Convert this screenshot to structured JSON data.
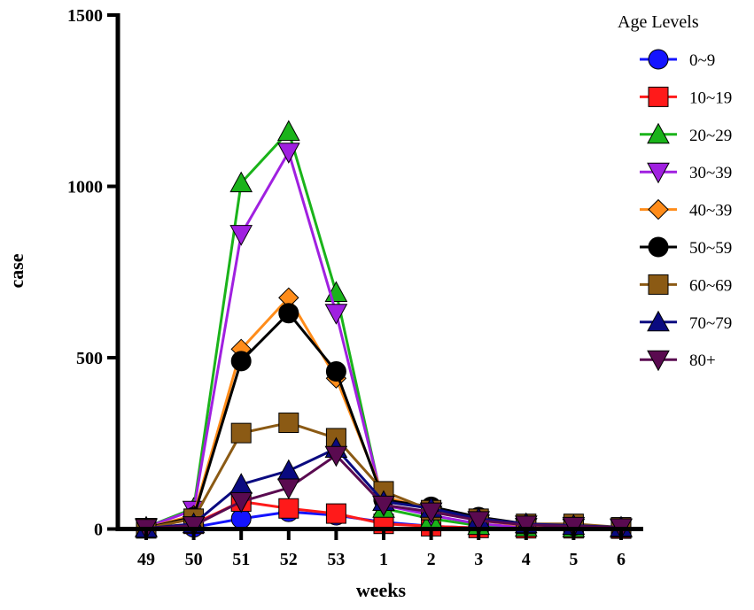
{
  "chart_data": {
    "type": "line",
    "title": "",
    "xlabel": "weeks",
    "ylabel": "case",
    "categories": [
      "49",
      "50",
      "51",
      "52",
      "53",
      "1",
      "2",
      "3",
      "4",
      "5",
      "6"
    ],
    "ylim": [
      0,
      1500
    ],
    "yticks": [
      0,
      500,
      1000,
      1500
    ],
    "legend_title": "Age Levels",
    "legend_position": "top-right",
    "series": [
      {
        "name": "0~9",
        "color": "#1414ff",
        "marker": "circle",
        "values": [
          2,
          5,
          30,
          50,
          40,
          20,
          8,
          3,
          2,
          2,
          1
        ]
      },
      {
        "name": "10~19",
        "color": "#ff1a1a",
        "marker": "square",
        "values": [
          2,
          15,
          80,
          60,
          45,
          15,
          8,
          3,
          2,
          2,
          1
        ]
      },
      {
        "name": "20~29",
        "color": "#1ab31a",
        "marker": "triangle-up",
        "values": [
          5,
          60,
          1010,
          1160,
          690,
          60,
          30,
          10,
          5,
          3,
          2
        ]
      },
      {
        "name": "30~39",
        "color": "#a020e0",
        "marker": "triangle-down",
        "values": [
          5,
          55,
          860,
          1100,
          630,
          70,
          40,
          15,
          5,
          3,
          2
        ]
      },
      {
        "name": "40~39",
        "color": "#ff8c1a",
        "marker": "diamond",
        "values": [
          3,
          40,
          525,
          675,
          440,
          95,
          55,
          25,
          10,
          8,
          4
        ]
      },
      {
        "name": "50~59",
        "color": "#000000",
        "marker": "circle",
        "values": [
          3,
          35,
          490,
          630,
          460,
          85,
          65,
          35,
          15,
          10,
          5
        ]
      },
      {
        "name": "60~69",
        "color": "#8b5a14",
        "marker": "square",
        "values": [
          2,
          30,
          280,
          310,
          265,
          110,
          55,
          30,
          15,
          15,
          5
        ]
      },
      {
        "name": "70~79",
        "color": "#0a0a80",
        "marker": "triangle-up",
        "values": [
          2,
          15,
          130,
          170,
          235,
          80,
          60,
          30,
          15,
          10,
          5
        ]
      },
      {
        "name": "80+",
        "color": "#5a0a50",
        "marker": "triangle-down",
        "values": [
          2,
          10,
          80,
          120,
          215,
          70,
          50,
          25,
          12,
          8,
          4
        ]
      }
    ]
  }
}
